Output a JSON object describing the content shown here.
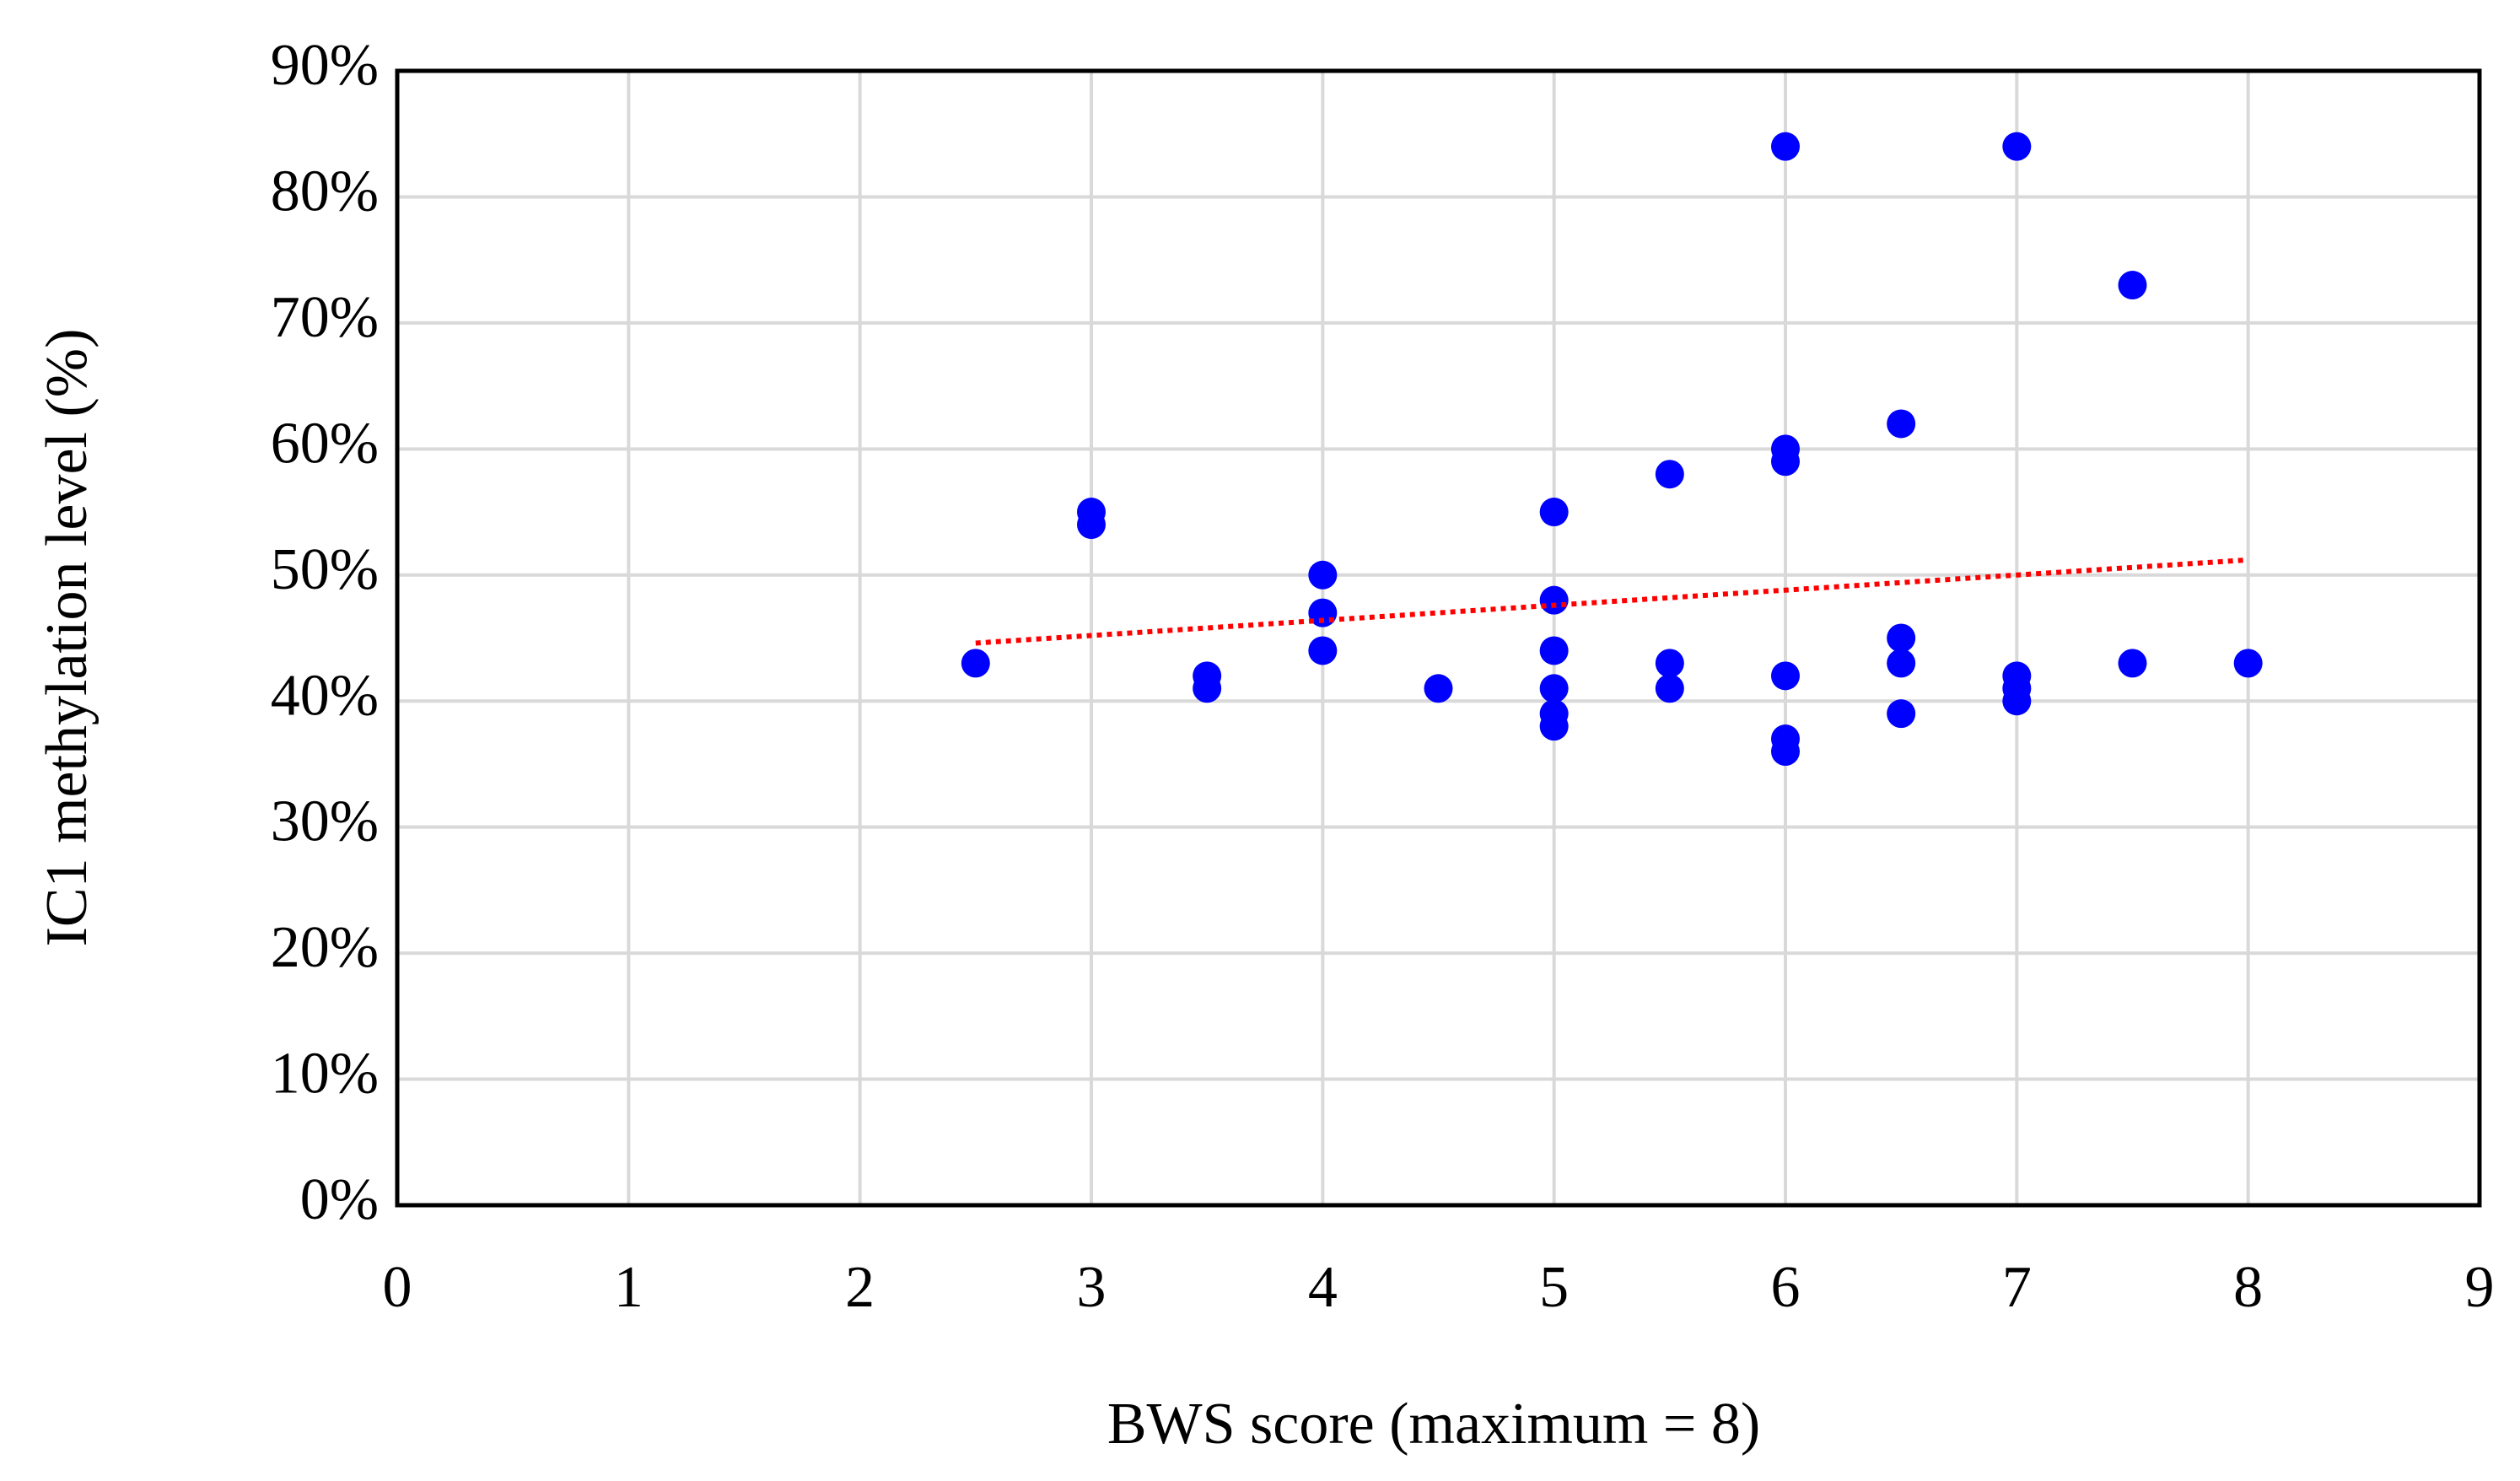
{
  "chart_data": {
    "type": "scatter",
    "x_label": "BWS score (maximum = 8)",
    "y_label": "IC1 methylation level (%)",
    "x": [
      2.5,
      3,
      3,
      3.5,
      3.5,
      4,
      4,
      4,
      4.5,
      5,
      5,
      5,
      5,
      5,
      5,
      5.5,
      5.5,
      5.5,
      6,
      6,
      6,
      6,
      6,
      6,
      6.5,
      6.5,
      6.5,
      6.5,
      7,
      7,
      7,
      7,
      7.5,
      7.5,
      8
    ],
    "values": [
      43,
      55,
      54,
      42,
      41,
      50,
      47,
      44,
      41,
      55,
      48,
      44,
      41,
      39,
      38,
      58,
      43,
      41,
      84,
      60,
      59,
      42,
      37,
      36,
      62,
      45,
      43,
      39,
      84,
      42,
      41,
      40,
      73,
      43,
      43
    ],
    "color": "#0000ff",
    "trendline": {
      "x": [
        2.5,
        8
      ],
      "values": [
        44.6,
        51.2
      ],
      "color": "#ff0000"
    },
    "xlim": [
      0,
      9
    ],
    "xticks": [
      0,
      1,
      2,
      3,
      4,
      5,
      6,
      7,
      8,
      9
    ],
    "ylim": [
      0,
      90
    ],
    "yticks": [
      {
        "value": 0,
        "label": "0%"
      },
      {
        "value": 10,
        "label": "10%"
      },
      {
        "value": 20,
        "label": "20%"
      },
      {
        "value": 30,
        "label": "30%"
      },
      {
        "value": 40,
        "label": "40%"
      },
      {
        "value": 50,
        "label": "50%"
      },
      {
        "value": 60,
        "label": "60%"
      },
      {
        "value": 70,
        "label": "70%"
      },
      {
        "value": 80,
        "label": "80%"
      },
      {
        "value": 90,
        "label": "90%"
      }
    ],
    "grid": true
  }
}
